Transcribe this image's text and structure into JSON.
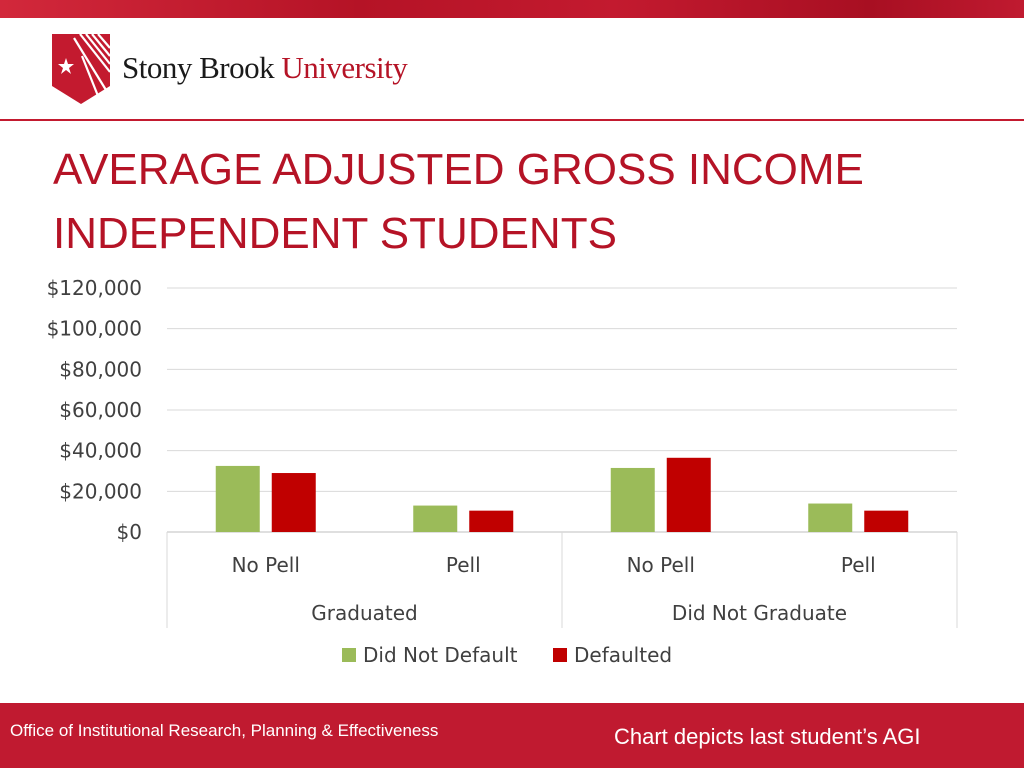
{
  "header": {
    "logo_primary": "Stony Brook",
    "logo_secondary": "University"
  },
  "title_lines": [
    "AVERAGE ADJUSTED GROSS INCOME",
    "INDEPENDENT STUDENTS"
  ],
  "footer": {
    "left": "Office of Institutional Research, Planning & Effectiveness",
    "right": "Chart depicts last student’s AGI"
  },
  "colors": {
    "brand_red": "#b51326",
    "did_not_default": "#9bbb59",
    "defaulted": "#c00000"
  },
  "chart_data": {
    "type": "bar",
    "title": "",
    "xlabel": "",
    "ylabel": "",
    "ylim": [
      0,
      120000
    ],
    "yticks": [
      0,
      20000,
      40000,
      60000,
      80000,
      100000,
      120000
    ],
    "ytick_labels": [
      "$0",
      "$20,000",
      "$40,000",
      "$60,000",
      "$80,000",
      "$100,000",
      "$120,000"
    ],
    "grid": true,
    "legend": "bottom",
    "groups": [
      "Graduated",
      "Did Not Graduate"
    ],
    "categories": [
      "No Pell",
      "Pell",
      "No Pell",
      "Pell"
    ],
    "category_group": [
      0,
      0,
      1,
      1
    ],
    "series": [
      {
        "name": "Did Not Default",
        "color": "#9bbb59",
        "values": [
          32500,
          13000,
          31500,
          14000
        ]
      },
      {
        "name": "Defaulted",
        "color": "#c00000",
        "values": [
          29000,
          10500,
          36500,
          10500
        ]
      }
    ]
  }
}
